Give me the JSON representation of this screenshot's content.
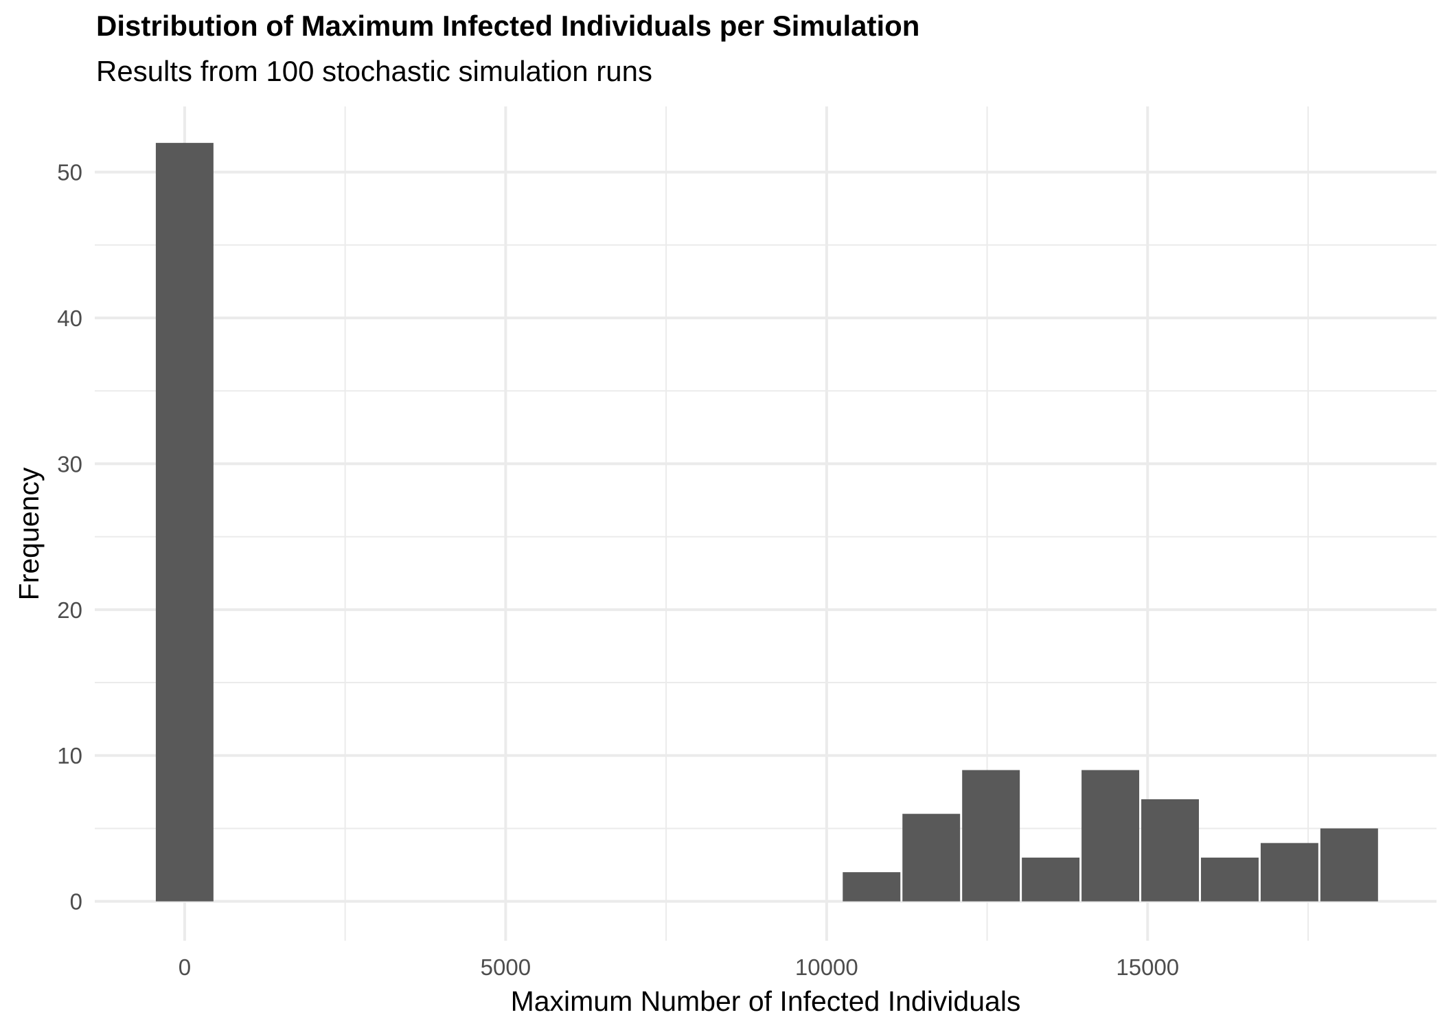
{
  "chart_data": {
    "type": "bar",
    "title": "Distribution of Maximum Infected Individuals per Simulation",
    "subtitle": "Results from 100 stochastic simulation runs",
    "xlabel": "Maximum Number of Infected Individuals",
    "ylabel": "Frequency",
    "xlim": [
      -1400,
      19500
    ],
    "ylim": [
      -2.7,
      54.5
    ],
    "x_ticks": [
      0,
      5000,
      10000,
      15000
    ],
    "y_ticks": [
      0,
      10,
      20,
      30,
      40,
      50
    ],
    "bin_width": 930,
    "bars": [
      {
        "x": 0,
        "count": 52
      },
      {
        "x": 10700,
        "count": 2
      },
      {
        "x": 11630,
        "count": 6
      },
      {
        "x": 12560,
        "count": 9
      },
      {
        "x": 13490,
        "count": 3
      },
      {
        "x": 14420,
        "count": 9
      },
      {
        "x": 15350,
        "count": 7
      },
      {
        "x": 16280,
        "count": 3
      },
      {
        "x": 17210,
        "count": 4
      },
      {
        "x": 18140,
        "count": 5
      }
    ],
    "grid": true,
    "bar_color": "#595959",
    "grid_color": "#ebebeb"
  }
}
